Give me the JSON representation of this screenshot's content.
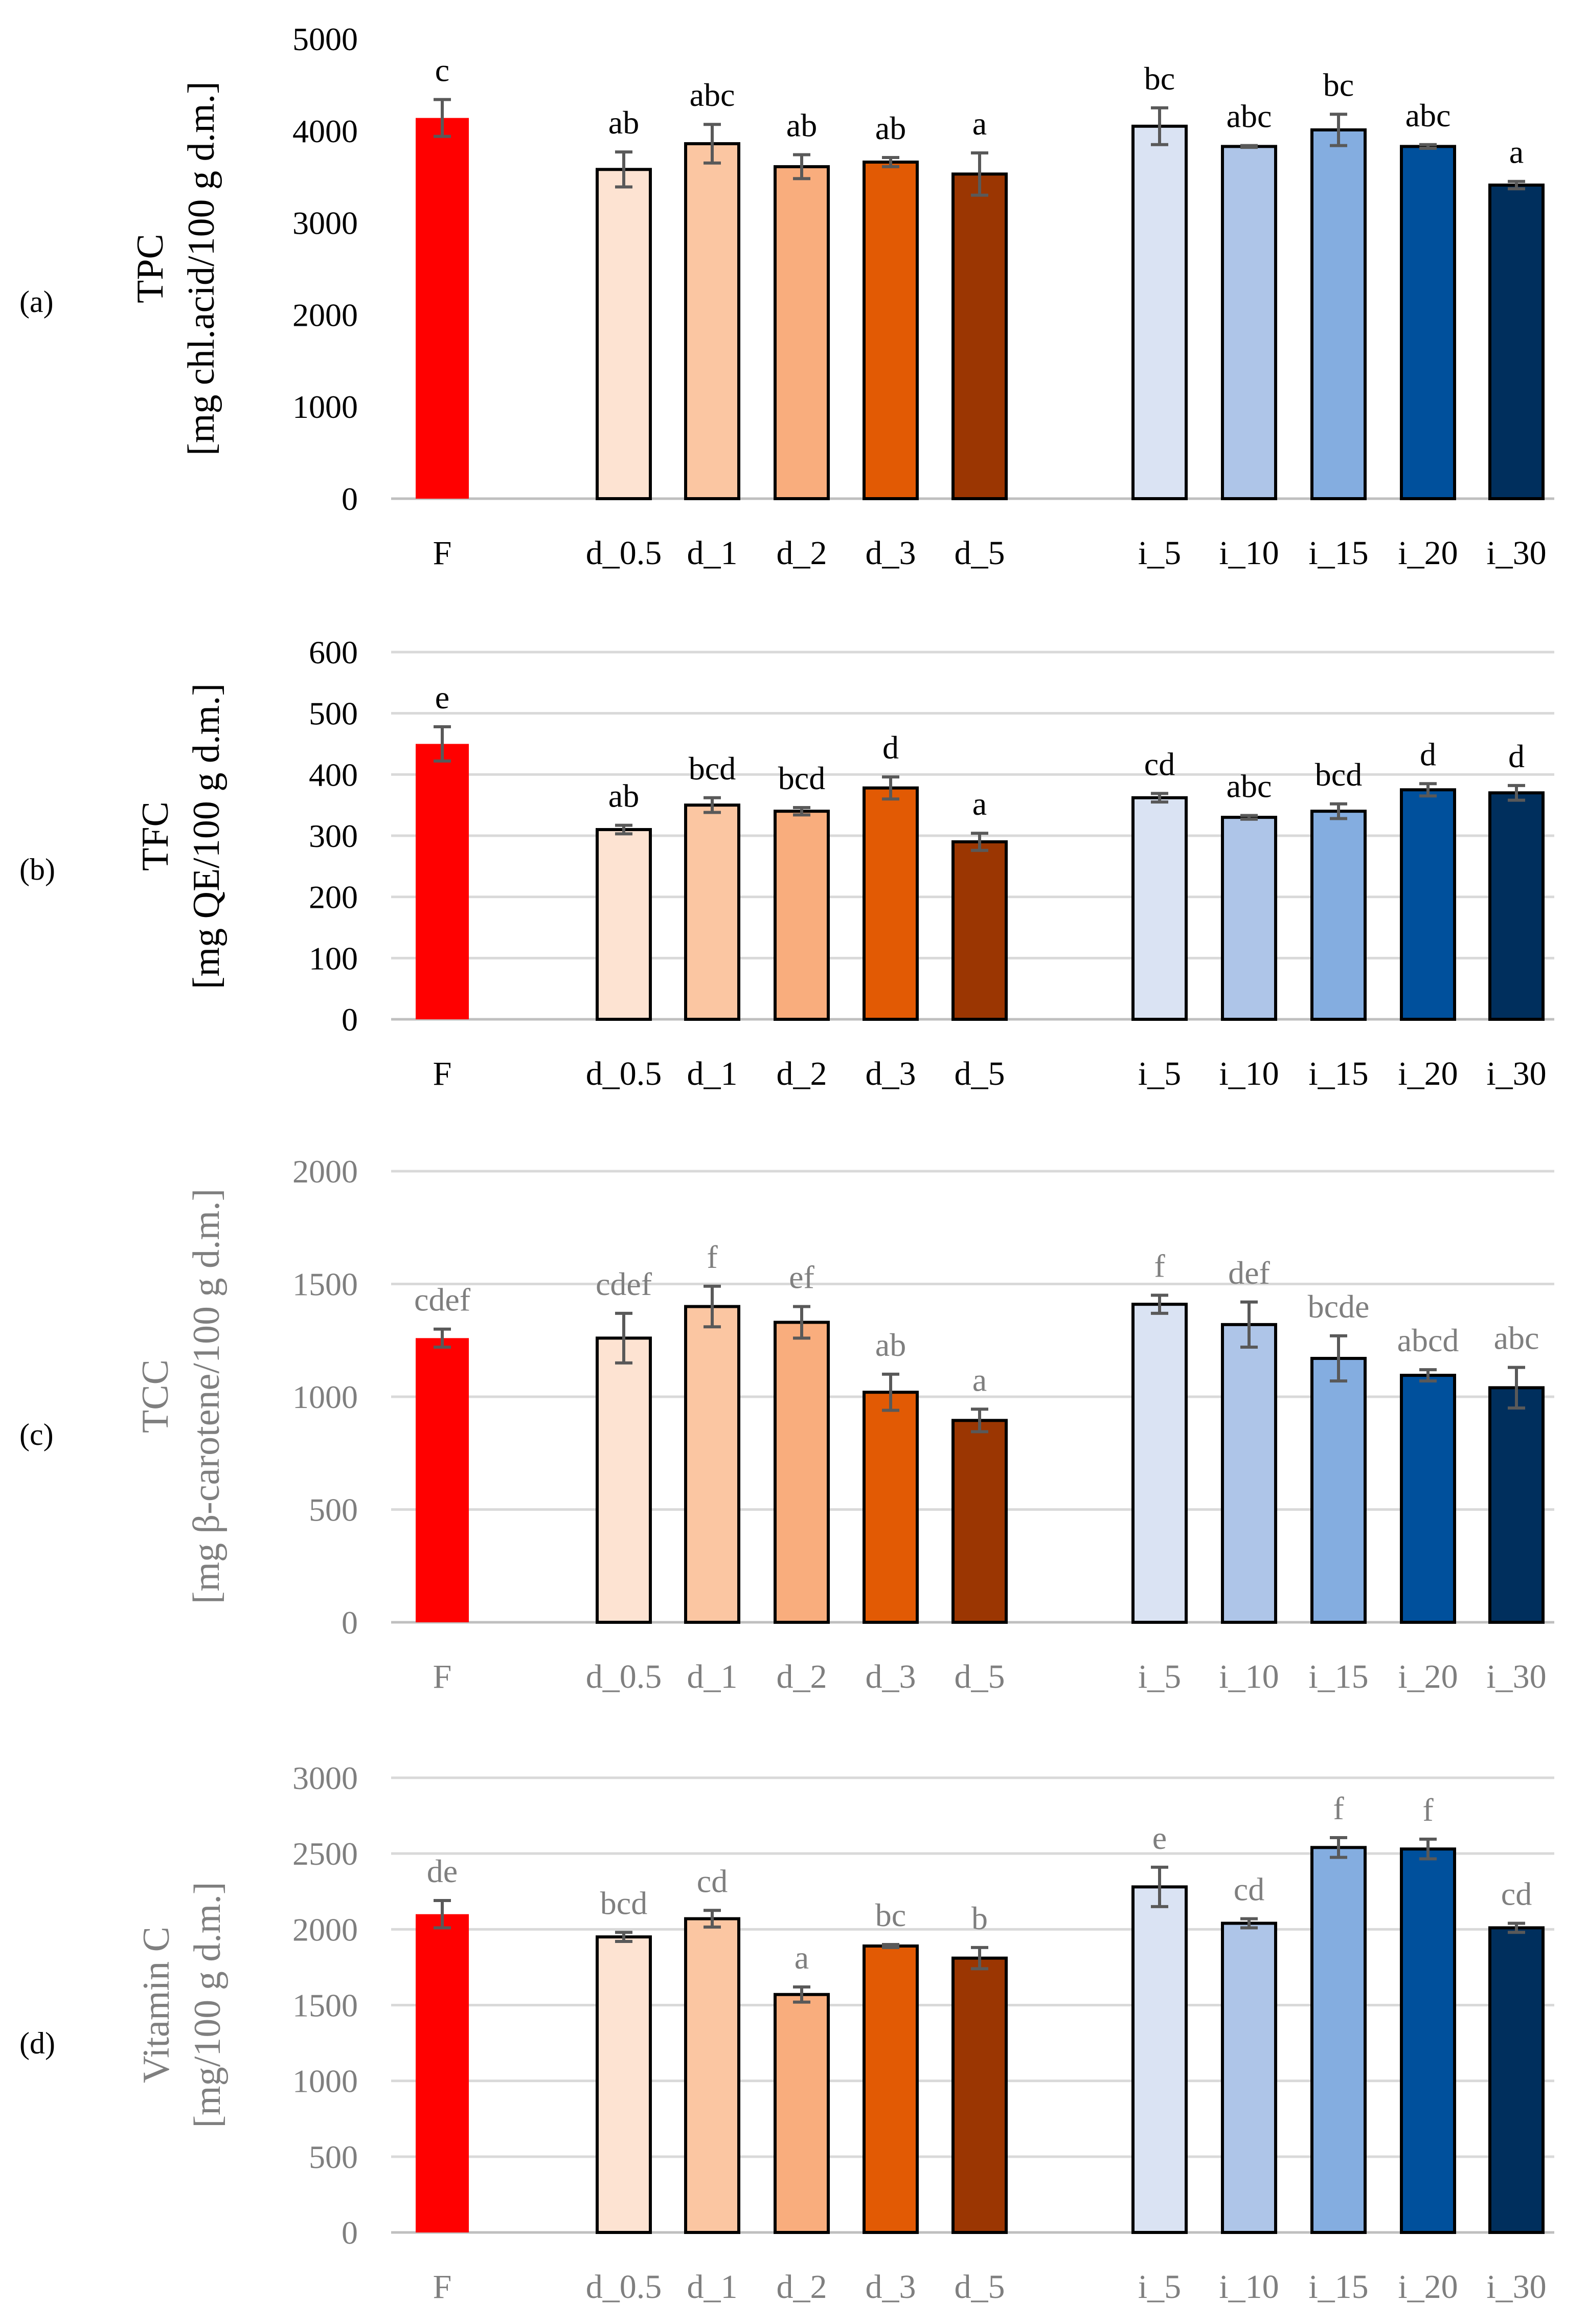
{
  "chart_data": [
    {
      "panel_label": "(a)",
      "type": "bar",
      "ylabel_line1": "TPC",
      "ylabel_line2": "[mg chl.acid/100 g d.m.]",
      "ylim": [
        0,
        5000
      ],
      "yticks": [
        0,
        1000,
        2000,
        3000,
        4000,
        5000
      ],
      "text_color": "dark",
      "grid": false,
      "categories": [
        "F",
        "d_0.5",
        "d_1",
        "d_2",
        "d_3",
        "d_5",
        "i_5",
        "i_10",
        "i_15",
        "i_20",
        "i_30"
      ],
      "values": [
        4140,
        3580,
        3860,
        3610,
        3660,
        3530,
        4050,
        3830,
        4010,
        3830,
        3410
      ],
      "errors": [
        200,
        190,
        210,
        130,
        50,
        230,
        200,
        10,
        170,
        20,
        40
      ],
      "letters": [
        "c",
        "ab",
        "abc",
        "ab",
        "ab",
        "a",
        "bc",
        "abc",
        "bc",
        "abc",
        "a"
      ]
    },
    {
      "panel_label": "(b)",
      "type": "bar",
      "ylabel_line1": "TFC",
      "ylabel_line2": "[mg QE/100 g d.m.]",
      "ylim": [
        0,
        600
      ],
      "yticks": [
        0,
        100,
        200,
        300,
        400,
        500,
        600
      ],
      "text_color": "dark",
      "grid": true,
      "categories": [
        "F",
        "d_0.5",
        "d_1",
        "d_2",
        "d_3",
        "d_5",
        "i_5",
        "i_10",
        "i_15",
        "i_20",
        "i_30"
      ],
      "values": [
        450,
        310,
        350,
        340,
        378,
        290,
        362,
        330,
        340,
        375,
        370
      ],
      "errors": [
        28,
        7,
        12,
        6,
        18,
        14,
        7,
        3,
        12,
        10,
        12
      ],
      "letters": [
        "e",
        "ab",
        "bcd",
        "bcd",
        "d",
        "a",
        "cd",
        "abc",
        "bcd",
        "d",
        "d"
      ]
    },
    {
      "panel_label": "(c)",
      "type": "bar",
      "ylabel_line1": "TCC",
      "ylabel_line2": "[mg β-carotene/100 g d.m.]",
      "ylim": [
        0,
        2000
      ],
      "yticks": [
        0,
        500,
        1000,
        1500,
        2000
      ],
      "text_color": "grey",
      "grid": true,
      "categories": [
        "F",
        "d_0.5",
        "d_1",
        "d_2",
        "d_3",
        "d_5",
        "i_5",
        "i_10",
        "i_15",
        "i_20",
        "i_30"
      ],
      "values": [
        1260,
        1260,
        1400,
        1330,
        1020,
        895,
        1410,
        1320,
        1170,
        1095,
        1040
      ],
      "errors": [
        40,
        110,
        90,
        70,
        80,
        50,
        40,
        100,
        100,
        25,
        90
      ],
      "letters": [
        "cdef",
        "cdef",
        "f",
        "ef",
        "ab",
        "a",
        "f",
        "def",
        "bcde",
        "abcd",
        "abc"
      ]
    },
    {
      "panel_label": "(d)",
      "type": "bar",
      "ylabel_line1": "Vitamin C",
      "ylabel_line2": "[mg/100 g d.m.]",
      "ylim": [
        0,
        3000
      ],
      "yticks": [
        0,
        500,
        1000,
        1500,
        2000,
        2500,
        3000
      ],
      "text_color": "grey",
      "grid": true,
      "categories": [
        "F",
        "d_0.5",
        "d_1",
        "d_2",
        "d_3",
        "d_5",
        "i_5",
        "i_10",
        "i_15",
        "i_20",
        "i_30"
      ],
      "values": [
        2100,
        1950,
        2070,
        1570,
        1890,
        1810,
        2280,
        2040,
        2540,
        2530,
        2010
      ],
      "errors": [
        90,
        30,
        55,
        50,
        10,
        70,
        130,
        30,
        65,
        65,
        30
      ],
      "letters": [
        "de",
        "bcd",
        "cd",
        "a",
        "bc",
        "b",
        "e",
        "cd",
        "f",
        "f",
        "cd"
      ]
    }
  ],
  "colors": {
    "bars": [
      "#ff0000",
      "#fde3d2",
      "#fbc6a2",
      "#f9ad7d",
      "#e25a04",
      "#9b3602",
      "#dae3f3",
      "#aec5e8",
      "#84ade0",
      "#00509c",
      "#002f5d"
    ],
    "error_bar": "#595959",
    "grid": "#d9d9d9",
    "axis": "#bfbfbf",
    "dark_text": "#000000",
    "grey_text": "#7f7f7f"
  }
}
